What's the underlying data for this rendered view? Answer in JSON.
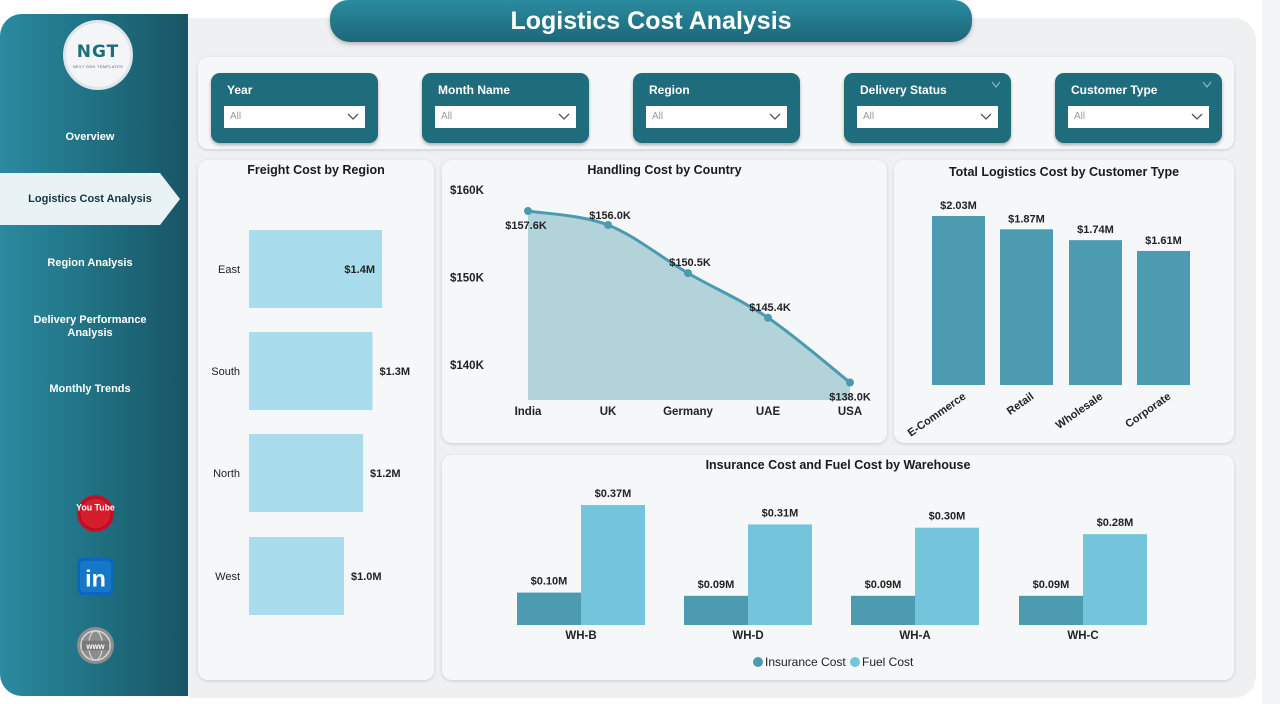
{
  "page_title": "Logistics Cost Analysis",
  "logo": {
    "text": "NGT",
    "subtext": "NEXT GEN TEMPLATES"
  },
  "nav": {
    "items": [
      {
        "label": "Overview"
      },
      {
        "label": "Logistics Cost Analysis",
        "active": true
      },
      {
        "label": "Region Analysis"
      },
      {
        "label": "Delivery Performance Analysis"
      },
      {
        "label": "Monthly Trends"
      }
    ]
  },
  "social": [
    {
      "icon": "youtube-icon",
      "text": "You Tube"
    },
    {
      "icon": "linkedin-icon",
      "text": "in"
    },
    {
      "icon": "website-icon",
      "text": "www"
    }
  ],
  "filters": [
    {
      "label": "Year",
      "value": "All"
    },
    {
      "label": "Month Name",
      "value": "All"
    },
    {
      "label": "Region",
      "value": "All"
    },
    {
      "label": "Delivery Status",
      "value": "All"
    },
    {
      "label": "Customer Type",
      "value": "All"
    }
  ],
  "colors": {
    "sidebar": "#1f6e80",
    "accent": "#4a9bb0",
    "light_bar": "#a9dcec",
    "bar_dark": "#4d9bb0",
    "bar_light": "#74c5dc"
  },
  "chart_data": [
    {
      "type": "bar",
      "orientation": "horizontal",
      "title": "Freight Cost by Region",
      "categories": [
        "East",
        "South",
        "North",
        "West"
      ],
      "values": [
        1.4,
        1.3,
        1.2,
        1.0
      ],
      "value_labels": [
        "$1.4M",
        "$1.3M",
        "$1.2M",
        "$1.0M"
      ],
      "unit": "$M"
    },
    {
      "type": "area",
      "title": "Handling Cost by Country",
      "categories": [
        "India",
        "UK",
        "Germany",
        "UAE",
        "USA"
      ],
      "values": [
        157.6,
        156.0,
        150.5,
        145.4,
        138.0
      ],
      "value_labels": [
        "$157.6K",
        "$156.0K",
        "$150.5K",
        "$145.4K",
        "$138.0K"
      ],
      "y_ticks": [
        "$160K",
        "$150K",
        "$140K"
      ],
      "ylim": [
        136,
        160
      ],
      "unit": "$K"
    },
    {
      "type": "bar",
      "title": "Total Logistics Cost by Customer Type",
      "categories": [
        "E-Commerce",
        "Retail",
        "Wholesale",
        "Corporate"
      ],
      "values": [
        2.03,
        1.87,
        1.74,
        1.61
      ],
      "value_labels": [
        "$2.03M",
        "$1.87M",
        "$1.74M",
        "$1.61M"
      ],
      "unit": "$M"
    },
    {
      "type": "bar",
      "title": "Insurance Cost and Fuel Cost by Warehouse",
      "categories": [
        "WH-B",
        "WH-D",
        "WH-A",
        "WH-C"
      ],
      "series": [
        {
          "name": "Insurance Cost",
          "values": [
            0.1,
            0.09,
            0.09,
            0.09
          ],
          "value_labels": [
            "$0.10M",
            "$0.09M",
            "$0.09M",
            "$0.09M"
          ]
        },
        {
          "name": "Fuel Cost",
          "values": [
            0.37,
            0.31,
            0.3,
            0.28
          ],
          "value_labels": [
            "$0.37M",
            "$0.31M",
            "$0.30M",
            "$0.28M"
          ]
        }
      ],
      "legend": "bottom",
      "unit": "$M"
    }
  ]
}
